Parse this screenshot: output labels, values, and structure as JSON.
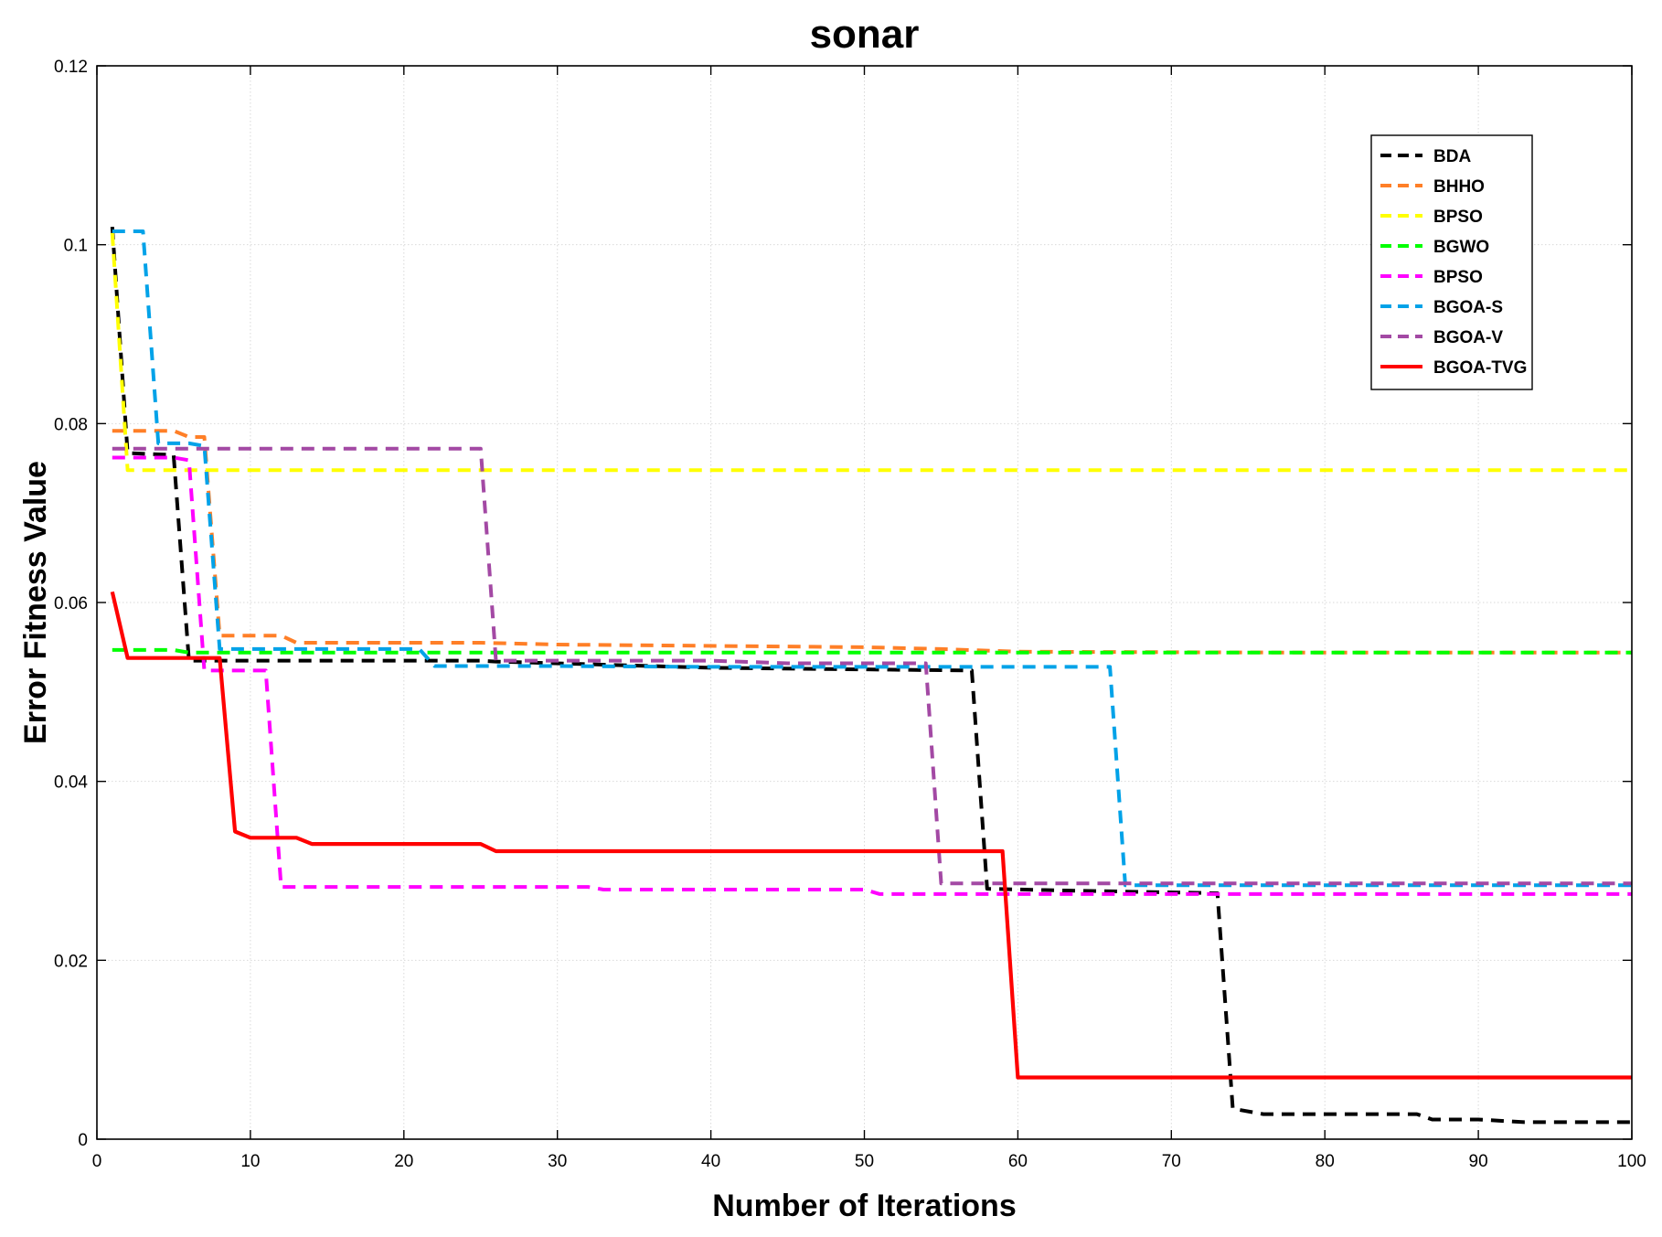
{
  "chart_data": {
    "type": "line",
    "title": "sonar",
    "xlabel": "Number of Iterations",
    "ylabel": "Error Fitness Value",
    "xlim": [
      0,
      100
    ],
    "ylim": [
      0,
      0.12
    ],
    "xticks": [
      0,
      10,
      20,
      30,
      40,
      50,
      60,
      70,
      80,
      90,
      100
    ],
    "yticks": [
      0,
      0.02,
      0.04,
      0.06,
      0.08,
      0.1,
      0.12
    ],
    "xtick_labels": [
      "0",
      "10",
      "20",
      "30",
      "40",
      "50",
      "60",
      "70",
      "80",
      "90",
      "100"
    ],
    "ytick_labels": [
      "0",
      "0.02",
      "0.04",
      "0.06",
      "0.08",
      "0.1",
      "0.12"
    ],
    "grid": true,
    "legend_position": "top-right",
    "series": [
      {
        "name": "BDA",
        "color": "#000000",
        "dashed": true,
        "points": [
          [
            1,
            0.102
          ],
          [
            2,
            0.0767
          ],
          [
            5,
            0.0765
          ],
          [
            6,
            0.0535
          ],
          [
            25,
            0.0535
          ],
          [
            26,
            0.0534
          ],
          [
            40,
            0.0527
          ],
          [
            57,
            0.0524
          ],
          [
            58,
            0.028
          ],
          [
            63,
            0.0278
          ],
          [
            73,
            0.0275
          ],
          [
            74,
            0.0034
          ],
          [
            76,
            0.0028
          ],
          [
            86,
            0.0028
          ],
          [
            87,
            0.0022
          ],
          [
            90,
            0.0022
          ],
          [
            93,
            0.0019
          ],
          [
            100,
            0.0019
          ]
        ]
      },
      {
        "name": "BHHO",
        "color": "#ff7f27",
        "dashed": true,
        "points": [
          [
            1,
            0.0792
          ],
          [
            5,
            0.0792
          ],
          [
            6,
            0.0785
          ],
          [
            7,
            0.0785
          ],
          [
            8,
            0.0563
          ],
          [
            12,
            0.0563
          ],
          [
            13,
            0.0555
          ],
          [
            25,
            0.0555
          ],
          [
            30,
            0.0553
          ],
          [
            50,
            0.055
          ],
          [
            55,
            0.0548
          ],
          [
            60,
            0.0545
          ],
          [
            78,
            0.0544
          ],
          [
            100,
            0.0544
          ]
        ]
      },
      {
        "name": "BPSO",
        "color": "#ffff00",
        "dashed": true,
        "points": [
          [
            1,
            0.1013
          ],
          [
            2,
            0.0748
          ],
          [
            100,
            0.0748
          ]
        ]
      },
      {
        "name": "BGWO",
        "color": "#00ff00",
        "dashed": true,
        "points": [
          [
            1,
            0.0547
          ],
          [
            5,
            0.0547
          ],
          [
            6,
            0.0544
          ],
          [
            100,
            0.0544
          ]
        ]
      },
      {
        "name": "BPSO",
        "color": "#ff00ff",
        "dashed": true,
        "points": [
          [
            1,
            0.0762
          ],
          [
            5,
            0.0762
          ],
          [
            6,
            0.0759
          ],
          [
            7,
            0.0524
          ],
          [
            10,
            0.0524
          ],
          [
            11,
            0.0524
          ],
          [
            12,
            0.0282
          ],
          [
            32,
            0.0282
          ],
          [
            33,
            0.0279
          ],
          [
            50,
            0.0279
          ],
          [
            51,
            0.0274
          ],
          [
            100,
            0.0274
          ]
        ]
      },
      {
        "name": "BGOA-S",
        "color": "#00a2e8",
        "dashed": true,
        "points": [
          [
            1,
            0.1015
          ],
          [
            3,
            0.1015
          ],
          [
            4,
            0.0778
          ],
          [
            6,
            0.0778
          ],
          [
            7,
            0.0775
          ],
          [
            8,
            0.0548
          ],
          [
            21,
            0.0548
          ],
          [
            22,
            0.0529
          ],
          [
            30,
            0.0529
          ],
          [
            40,
            0.0528
          ],
          [
            66,
            0.0528
          ],
          [
            67,
            0.0284
          ],
          [
            100,
            0.0284
          ]
        ]
      },
      {
        "name": "BGOA-V",
        "color": "#a349a4",
        "dashed": true,
        "points": [
          [
            1,
            0.0772
          ],
          [
            25,
            0.0772
          ],
          [
            26,
            0.0535
          ],
          [
            40,
            0.0535
          ],
          [
            45,
            0.0532
          ],
          [
            54,
            0.0532
          ],
          [
            55,
            0.0286
          ],
          [
            100,
            0.0286
          ]
        ]
      },
      {
        "name": "BGOA-TVG",
        "color": "#ff0000",
        "dashed": false,
        "points": [
          [
            1,
            0.0612
          ],
          [
            2,
            0.0538
          ],
          [
            8,
            0.0538
          ],
          [
            9,
            0.0344
          ],
          [
            10,
            0.0337
          ],
          [
            13,
            0.0337
          ],
          [
            14,
            0.033
          ],
          [
            25,
            0.033
          ],
          [
            26,
            0.0322
          ],
          [
            59,
            0.0322
          ],
          [
            60,
            0.0069
          ],
          [
            100,
            0.0069
          ]
        ]
      }
    ]
  }
}
